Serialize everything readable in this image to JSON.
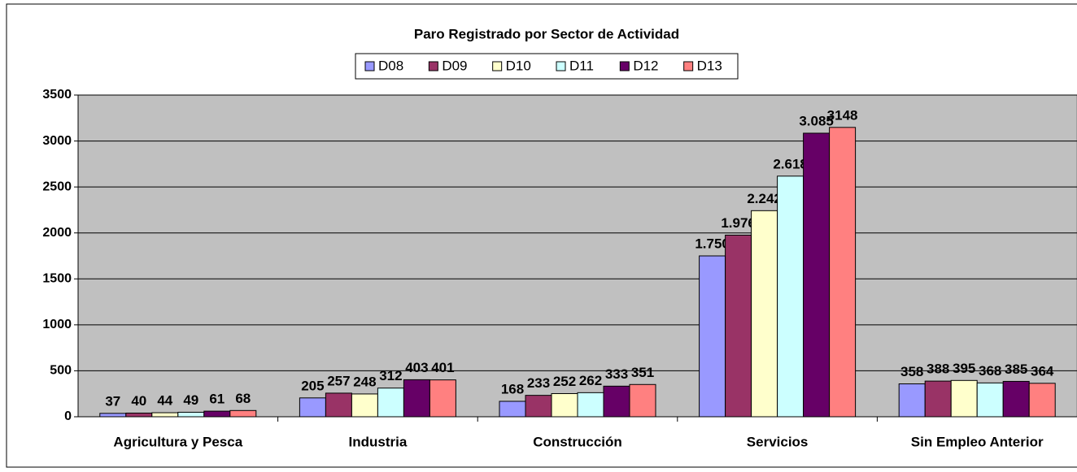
{
  "chart_data": {
    "type": "bar",
    "title": "Paro Registrado por Sector de Actividad",
    "categories": [
      "Agricultura y Pesca",
      "Industria",
      "Construcción",
      "Servicios",
      "Sin Empleo Anterior"
    ],
    "series": [
      {
        "name": "D08",
        "color": "#9999ff",
        "values": [
          37,
          205,
          168,
          1750,
          358
        ],
        "value_labels": [
          "37",
          "205",
          "168",
          "1.750",
          "358"
        ]
      },
      {
        "name": "D09",
        "color": "#993366",
        "values": [
          40,
          257,
          233,
          1976,
          388
        ],
        "value_labels": [
          "40",
          "257",
          "233",
          "1.976",
          "388"
        ]
      },
      {
        "name": "D10",
        "color": "#ffffcc",
        "values": [
          44,
          248,
          252,
          2242,
          395
        ],
        "value_labels": [
          "44",
          "248",
          "252",
          "2.242",
          "395"
        ]
      },
      {
        "name": "D11",
        "color": "#ccffff",
        "values": [
          49,
          312,
          262,
          2618,
          368
        ],
        "value_labels": [
          "49",
          "312",
          "262",
          "2.618",
          "368"
        ]
      },
      {
        "name": "D12",
        "color": "#660066",
        "values": [
          61,
          403,
          333,
          3085,
          385
        ],
        "value_labels": [
          "61",
          "403",
          "333",
          "3.085",
          "385"
        ]
      },
      {
        "name": "D13",
        "color": "#ff8080",
        "values": [
          68,
          401,
          351,
          3148,
          364
        ],
        "value_labels": [
          "68",
          "401",
          "351",
          "3148",
          "364"
        ]
      }
    ],
    "ylim": [
      0,
      3500
    ],
    "yticks": [
      0,
      500,
      1000,
      1500,
      2000,
      2500,
      3000,
      3500
    ],
    "grid": true,
    "legend": "top"
  }
}
